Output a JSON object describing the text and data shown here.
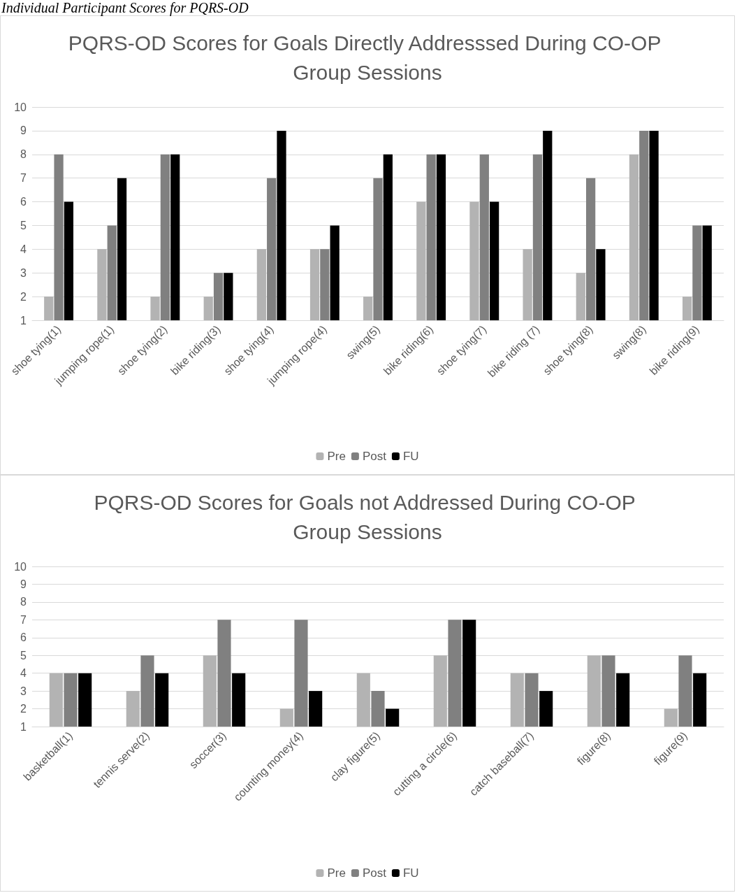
{
  "chart_data": [
    {
      "type": "bar",
      "title": "PQRS-OD Scores for Goals Directly Addresssed During CO-OP Group Sessions",
      "annotations": [
        "Individual Participant Scores for PQRS-OD"
      ],
      "categories": [
        "shoe tying(1)",
        "jumping rope(1)",
        "shoe tying(2)",
        "bike riding(3)",
        "shoe tying(4)",
        "jumping rope(4)",
        "swing(5)",
        "bike riding(6)",
        "shoe tying(7)",
        "bike riding (7)",
        "shoe tying(8)",
        "swing(8)",
        "bike riding(9)"
      ],
      "series": [
        {
          "name": "Pre",
          "color": "#b3b3b3",
          "values": [
            2,
            4,
            2,
            2,
            4,
            4,
            2,
            6,
            6,
            4,
            3,
            8,
            2
          ]
        },
        {
          "name": "Post",
          "color": "#808080",
          "values": [
            8,
            5,
            8,
            3,
            7,
            4,
            7,
            8,
            8,
            8,
            7,
            9,
            5
          ]
        },
        {
          "name": "FU",
          "color": "#000000",
          "values": [
            6,
            7,
            8,
            3,
            9,
            5,
            8,
            8,
            6,
            9,
            4,
            9,
            5
          ]
        }
      ],
      "ylim": [
        1,
        10
      ],
      "yticks": [
        1,
        2,
        3,
        4,
        5,
        6,
        7,
        8,
        9,
        10
      ],
      "grid": "y",
      "legend": "bottom"
    },
    {
      "type": "bar",
      "title": "PQRS-OD Scores for Goals not Addressed During CO-OP Group Sessions",
      "categories": [
        "basketball(1)",
        "tennis serve(2)",
        "soccer(3)",
        "counting money(4)",
        "clay figure(5)",
        "cutting a circle(6)",
        "catch baseball(7)",
        "figure(8)",
        "figure(9)"
      ],
      "series": [
        {
          "name": "Pre",
          "color": "#b3b3b3",
          "values": [
            4,
            3,
            5,
            2,
            4,
            5,
            4,
            5,
            2
          ]
        },
        {
          "name": "Post",
          "color": "#808080",
          "values": [
            4,
            5,
            7,
            7,
            3,
            7,
            4,
            5,
            5
          ]
        },
        {
          "name": "FU",
          "color": "#000000",
          "values": [
            4,
            4,
            4,
            3,
            2,
            7,
            3,
            4,
            4
          ]
        }
      ],
      "ylim": [
        1,
        10
      ],
      "yticks": [
        1,
        2,
        3,
        4,
        5,
        6,
        7,
        8,
        9,
        10
      ],
      "grid": "y",
      "legend": "bottom"
    }
  ]
}
